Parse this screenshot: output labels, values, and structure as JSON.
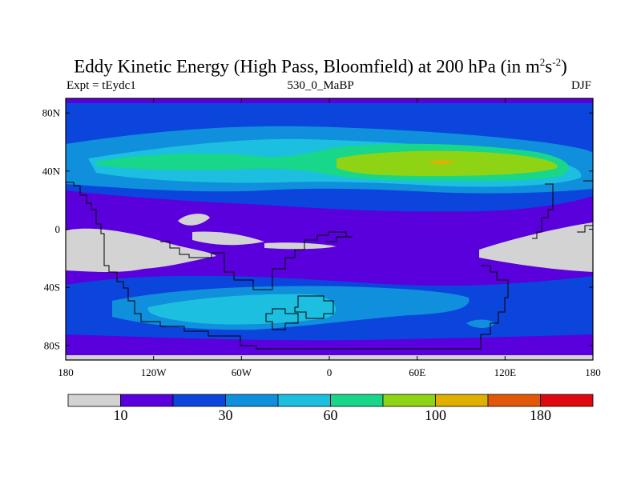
{
  "title": {
    "main_prefix": "Eddy Kinetic Energy (High Pass, Bloomfield) at 200 hPa (in m",
    "sup1": "2",
    "mid": "s",
    "sup2": "-2",
    "suffix": ")"
  },
  "subtitle_left": "Expt = tEydc1",
  "subtitle_center": "530_0_MaBP",
  "subtitle_right": "DJF",
  "lat_labels": [
    {
      "text": "80N",
      "lat": 80
    },
    {
      "text": "40N",
      "lat": 40
    },
    {
      "text": "0",
      "lat": 0
    },
    {
      "text": "40S",
      "lat": -40
    },
    {
      "text": "80S",
      "lat": -80
    }
  ],
  "lon_labels": [
    {
      "text": "180",
      "lon": -180
    },
    {
      "text": "120W",
      "lon": -120
    },
    {
      "text": "60W",
      "lon": -60
    },
    {
      "text": "0",
      "lon": 0
    },
    {
      "text": "60E",
      "lon": 60
    },
    {
      "text": "120E",
      "lon": 120
    },
    {
      "text": "180",
      "lon": 180
    }
  ],
  "colorbar": {
    "colors": [
      "#d3d3d3",
      "#5a00dc",
      "#0b45dc",
      "#0f8fdc",
      "#1cbfe0",
      "#18d68a",
      "#8fd414",
      "#e0b000",
      "#e05808",
      "#e00810"
    ],
    "labels": [
      {
        "text": "10",
        "index": 1
      },
      {
        "text": "30",
        "index": 3
      },
      {
        "text": "60",
        "index": 5
      },
      {
        "text": "100",
        "index": 7
      },
      {
        "text": "180",
        "index": 9
      }
    ]
  },
  "colors": {
    "missing": "#d3d3d3",
    "level1": "#5a00dc",
    "level2": "#0b45dc",
    "level3": "#0f8fdc",
    "level4": "#1cbfe0",
    "level5": "#18d68a",
    "level6": "#8fd414",
    "level7": "#e0b000",
    "level8": "#e05808"
  }
}
